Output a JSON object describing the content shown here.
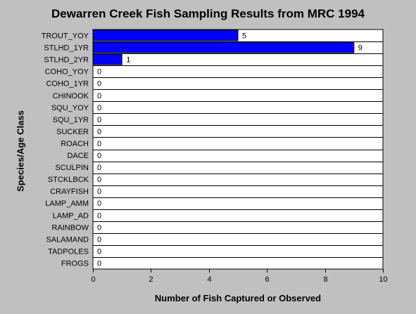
{
  "chart_data": {
    "type": "bar",
    "orientation": "horizontal",
    "title": "Dewarren Creek Fish Sampling Results from MRC 1994",
    "xlabel": "Number of Fish Captured or Observed",
    "ylabel": "Species/Age Class",
    "categories": [
      "TROUT_YOY",
      "STLHD_1YR",
      "STLHD_2YR",
      "COHO_YOY",
      "COHO_1YR",
      "CHINOOK",
      "SQU_YOY",
      "SQU_1YR",
      "SUCKER",
      "ROACH",
      "DACE",
      "SCULPIN",
      "STCKLBCK",
      "CRAYFISH",
      "LAMP_AMM",
      "LAMP_AD",
      "RAINBOW",
      "SALAMAND",
      "TADPOLES",
      "FROGS"
    ],
    "values": [
      5,
      9,
      1,
      0,
      0,
      0,
      0,
      0,
      0,
      0,
      0,
      0,
      0,
      0,
      0,
      0,
      0,
      0,
      0,
      0
    ],
    "xlim": [
      0,
      10
    ],
    "xticks": [
      0,
      2,
      4,
      6,
      8,
      10
    ],
    "grid": "horizontal lines",
    "bar_color": "#0000ff",
    "plot_background": "#ffffff"
  }
}
